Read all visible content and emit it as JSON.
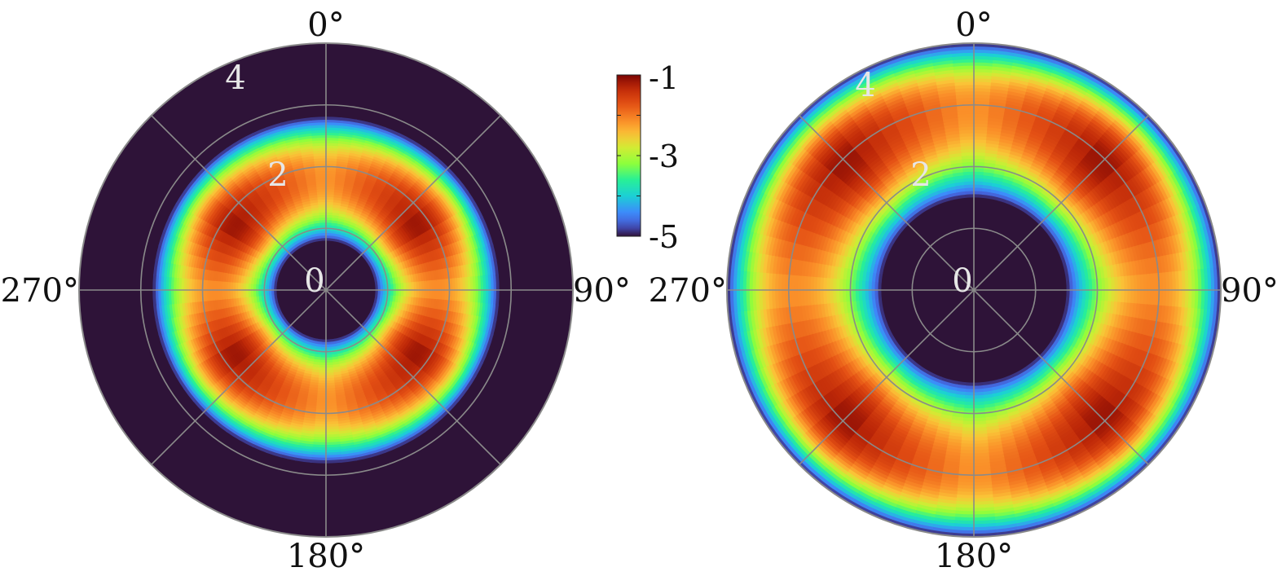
{
  "chart_data": [
    {
      "type": "heatmap",
      "subtype": "polar",
      "angular_ticks": [
        "0°",
        "90°",
        "180°",
        "270°"
      ],
      "radial_ticks": [
        "0",
        "2",
        "4"
      ],
      "r_range": [
        0,
        4
      ],
      "grid": true,
      "grid_circles": [
        1,
        2,
        3,
        4
      ],
      "grid_spokes_deg": [
        0,
        45,
        90,
        135,
        180,
        225,
        270,
        315
      ],
      "value_range": [
        -5,
        -1
      ],
      "annulus_r": [
        0.8,
        2.8
      ],
      "ring_peak_r": 1.8,
      "ring_peak_value": -1.1,
      "hot_angles_deg": [
        55,
        125,
        235,
        305
      ],
      "cool_angles_deg": [
        0,
        90,
        180,
        270
      ],
      "cool_value": -2.2
    },
    {
      "type": "heatmap",
      "subtype": "polar",
      "angular_ticks": [
        "0°",
        "90°",
        "180°",
        "270°"
      ],
      "radial_ticks": [
        "0",
        "2",
        "4"
      ],
      "r_range": [
        0,
        4
      ],
      "grid": true,
      "grid_circles": [
        1,
        2,
        3,
        4
      ],
      "grid_spokes_deg": [
        0,
        45,
        90,
        135,
        180,
        225,
        270,
        315
      ],
      "value_range": [
        -5,
        -1
      ],
      "annulus_r": [
        1.5,
        4.0
      ],
      "ring_peak_r": 2.95,
      "ring_peak_value": -1.1,
      "hot_angles_deg": [
        45,
        135,
        225,
        315
      ],
      "cool_angles_deg": [
        0,
        90,
        180,
        270
      ],
      "cool_value": -2.2
    }
  ],
  "colorbar": {
    "min": -5,
    "max": -1,
    "tick_labels": [
      "-1",
      "-3",
      "-5"
    ],
    "tick_values": [
      -1,
      -3,
      -5
    ],
    "minor_tick_values": [
      -2,
      -4
    ],
    "colormap": "turbo"
  },
  "colors": {
    "background_dark": "#2e1338",
    "grid": "#8a8a8a",
    "radial_label": "#e6e6e6"
  }
}
